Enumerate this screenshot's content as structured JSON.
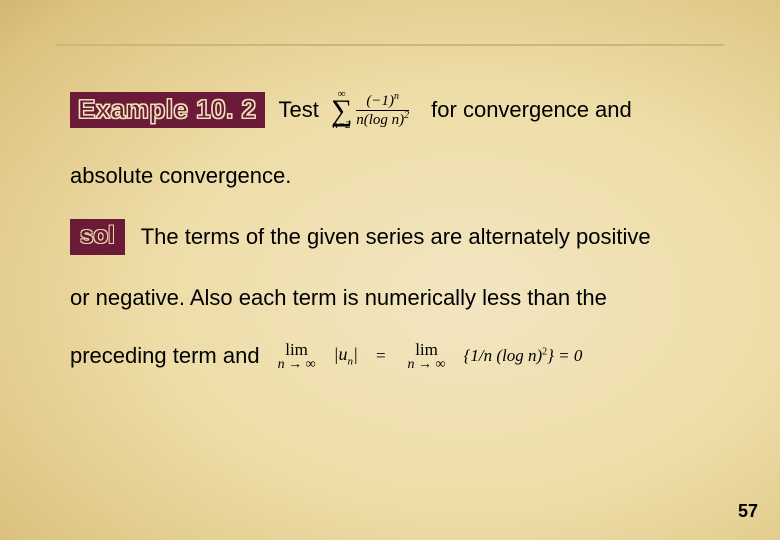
{
  "colors": {
    "badge_bg": "#6b1a38",
    "rule": "#c9b77d",
    "text": "#000000",
    "bg_center": "#f2e5c0",
    "bg_mid": "#dcc27e",
    "bg_edge": "#7a5a28"
  },
  "fonts": {
    "body_family": "Arial",
    "math_family": "Cambria Math",
    "body_size_pt": 16,
    "badge_size_pt": 20
  },
  "example_label": "Example 10. 2",
  "sol_label": "sol",
  "test_word": "Test",
  "series": {
    "upper": "∞",
    "lower": "n=2",
    "numerator_base": "(−1)",
    "numerator_exp": "n",
    "denominator_base": "n(log  n)",
    "denominator_exp": "2"
  },
  "line1_tail": "for convergence and",
  "line2": "absolute convergence.",
  "line3_text": "The terms of the given series are alternately positive",
  "line4": "or negative. Also each term is numerically less than the",
  "line5_lead": "preceding term and",
  "limit": {
    "top": "lim",
    "bottom": "n → ∞"
  },
  "abs_un": "|u",
  "abs_un_sub": "n",
  "abs_un_close": "|",
  "between_eq": "=",
  "rhs_open": "{1/",
  "rhs_mid": "n  (log n)",
  "rhs_exp": "2",
  "rhs_close": "} = 0",
  "page_number": "57"
}
